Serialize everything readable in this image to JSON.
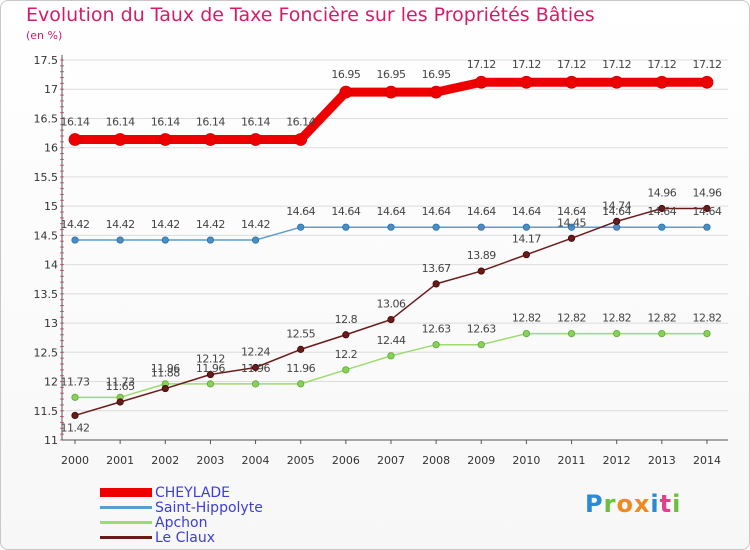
{
  "title": "Evolution du Taux de Taxe Foncière sur les Propriétés Bâties",
  "unit": "(en %)",
  "brand": {
    "letters": [
      "P",
      "r",
      "o",
      "x",
      "i",
      "t",
      "i"
    ],
    "colors": [
      "#2a8ad6",
      "#6cc03c",
      "#f08a1e",
      "#f08a1e",
      "#2a8ad6",
      "#e63c8c",
      "#6cc03c"
    ]
  },
  "chart_data": {
    "type": "line",
    "title": "Evolution du Taux de Taxe Foncière sur les Propriétés Bâties",
    "ylabel": "(en %)",
    "xlabel": "",
    "x": [
      "2000",
      "2001",
      "2002",
      "2003",
      "2004",
      "2005",
      "2006",
      "2007",
      "2008",
      "2009",
      "2010",
      "2011",
      "2012",
      "2013",
      "2014"
    ],
    "ylim": [
      11,
      17.5
    ],
    "yticks": [
      "11",
      "11.5",
      "12",
      "12.5",
      "13",
      "13.5",
      "14",
      "14.5",
      "15",
      "15.5",
      "16",
      "16.5",
      "17",
      "17.5"
    ],
    "legend_position": "bottom-left",
    "series": [
      {
        "name": "CHEYLADE",
        "color": "#ee0000",
        "values": [
          16.14,
          16.14,
          16.14,
          16.14,
          16.14,
          16.14,
          16.95,
          16.95,
          16.95,
          17.12,
          17.12,
          17.12,
          17.12,
          17.12,
          17.12
        ],
        "labels": [
          "16.14",
          "16.14",
          "16.14",
          "16.14",
          "16.14",
          "16.14",
          "16.95",
          "16.95",
          "16.95",
          "17.12",
          "17.12",
          "17.12",
          "17.12",
          "17.12",
          "17.12"
        ]
      },
      {
        "name": "Saint-Hippolyte",
        "color": "#5a9ed0",
        "values": [
          14.42,
          14.42,
          14.42,
          14.42,
          14.42,
          14.64,
          14.64,
          14.64,
          14.64,
          14.64,
          14.64,
          14.64,
          14.64,
          14.64,
          14.64
        ],
        "labels": [
          "14.42",
          "14.42",
          "14.42",
          "14.42",
          "14.42",
          "14.64",
          "14.64",
          "14.64",
          "14.64",
          "14.64",
          "14.64",
          "14.64",
          "14.64",
          "14.64",
          "14.64"
        ]
      },
      {
        "name": "Apchon",
        "color": "#9cdc6c",
        "values": [
          11.73,
          11.73,
          11.96,
          11.96,
          11.96,
          11.96,
          12.2,
          12.44,
          12.63,
          12.63,
          12.82,
          12.82,
          12.82,
          12.82,
          12.82
        ],
        "labels": [
          "11.73",
          "11.73",
          "11.96",
          "11.96",
          "11.96",
          "11.96",
          "12.2",
          "12.44",
          "12.63",
          "12.63",
          "12.82",
          "12.82",
          "12.82",
          "12.82",
          "12.82"
        ]
      },
      {
        "name": "Le Claux",
        "color": "#6b1a1a",
        "values": [
          11.42,
          11.65,
          11.88,
          12.12,
          12.24,
          12.55,
          12.8,
          13.06,
          13.67,
          13.89,
          14.17,
          14.45,
          14.74,
          14.96,
          14.96
        ],
        "labels": [
          "11.42",
          "11.65",
          "11.88",
          "12.12",
          "12.24",
          "12.55",
          "12.8",
          "13.06",
          "13.67",
          "13.89",
          "14.17",
          "14.45",
          "14.74",
          "14.96",
          "14.96"
        ]
      }
    ]
  }
}
